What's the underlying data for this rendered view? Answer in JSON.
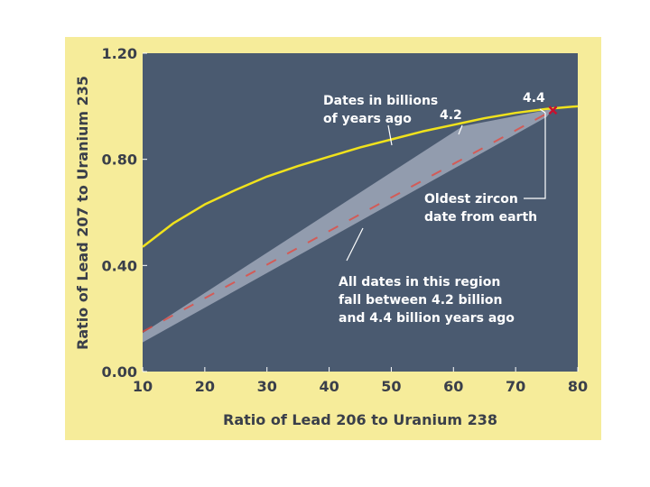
{
  "chart_data": {
    "type": "line",
    "title": "",
    "xlabel": "Ratio of Lead 206 to Uranium 238",
    "ylabel": "Ratio of Lead 207 to Uranium 235",
    "xlim": [
      10,
      80
    ],
    "ylim": [
      0,
      1.2
    ],
    "x_ticks": [
      10,
      20,
      30,
      40,
      50,
      60,
      70,
      80
    ],
    "x_tick_labels": [
      "10",
      "20",
      "30",
      "40",
      "50",
      "60",
      "70",
      "80"
    ],
    "y_ticks": [
      0,
      0.4,
      0.8,
      1.2
    ],
    "y_tick_labels": [
      "0.00",
      "0.40",
      "0.80",
      "1.20"
    ],
    "grid": false,
    "concordia_curve": {
      "color": "#f0e21c",
      "points": [
        [
          10,
          0.47
        ],
        [
          15,
          0.56
        ],
        [
          20,
          0.63
        ],
        [
          25,
          0.685
        ],
        [
          30,
          0.735
        ],
        [
          35,
          0.775
        ],
        [
          40,
          0.81
        ],
        [
          45,
          0.845
        ],
        [
          50,
          0.875
        ],
        [
          55,
          0.905
        ],
        [
          60,
          0.93
        ],
        [
          65,
          0.955
        ],
        [
          70,
          0.975
        ],
        [
          75,
          0.99
        ],
        [
          80,
          1.0
        ]
      ]
    },
    "date_region": {
      "color": "#9aa3b5",
      "polygon": [
        [
          10,
          0.11
        ],
        [
          10,
          0.145
        ],
        [
          61.5,
          0.925
        ],
        [
          76,
          0.99
        ],
        [
          75,
          0.96
        ]
      ]
    },
    "discordia_line": {
      "color": "#e8463a",
      "points": [
        [
          10,
          0.15
        ],
        [
          76,
          0.985
        ]
      ]
    },
    "oldest_point": {
      "x": 76,
      "y": 0.985,
      "color": "#c8102e"
    },
    "annotations": [
      {
        "id": "dates-billions",
        "lines": [
          "Dates in billions",
          "of years ago"
        ]
      },
      {
        "id": "date-4-2",
        "lines": [
          "4.2"
        ]
      },
      {
        "id": "date-4-4",
        "lines": [
          "4.4"
        ]
      },
      {
        "id": "oldest-zircon",
        "lines": [
          "Oldest zircon",
          "date from earth"
        ]
      },
      {
        "id": "region-note",
        "lines": [
          "All dates in this region",
          "fall between 4.2 billion",
          "and 4.4 billion years ago"
        ]
      }
    ],
    "colors": {
      "figure_background": "#f6ec9a",
      "plot_background": "#4a5a70",
      "text": "#3a3f4a",
      "annotation_text": "#ffffff"
    }
  }
}
